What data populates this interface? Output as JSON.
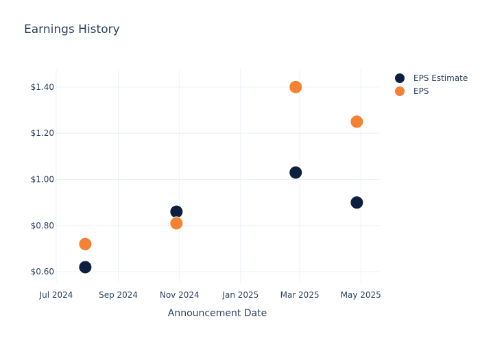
{
  "chart_data": {
    "type": "scatter",
    "title": "Earnings History",
    "xlabel": "Announcement Date",
    "ylabel": "",
    "x_axis": {
      "type": "date",
      "range": [
        "2024-07-01",
        "2025-05-20"
      ],
      "tick_labels": [
        {
          "date": "2024-07-01",
          "label": "Jul 2024"
        },
        {
          "date": "2024-09-01",
          "label": "Sep 2024"
        },
        {
          "date": "2024-11-01",
          "label": "Nov 2024"
        },
        {
          "date": "2025-01-01",
          "label": "Jan 2025"
        },
        {
          "date": "2025-03-01",
          "label": "Mar 2025"
        },
        {
          "date": "2025-05-01",
          "label": "May 2025"
        }
      ]
    },
    "y_axis": {
      "range": [
        0.55,
        1.48
      ],
      "tick_labels": [
        {
          "value": 0.6,
          "label": "$0.60"
        },
        {
          "value": 0.8,
          "label": "$0.80"
        },
        {
          "value": 1.0,
          "label": "$1.00"
        },
        {
          "value": 1.2,
          "label": "$1.20"
        },
        {
          "value": 1.4,
          "label": "$1.40"
        }
      ]
    },
    "grid": true,
    "legend_position": "top-right",
    "series": [
      {
        "name": "EPS Estimate",
        "color": "#0d1f3e",
        "points": [
          {
            "x": "2024-07-30",
            "y": 0.62
          },
          {
            "x": "2024-10-29",
            "y": 0.86
          },
          {
            "x": "2025-02-25",
            "y": 1.03
          },
          {
            "x": "2025-04-27",
            "y": 0.9
          }
        ]
      },
      {
        "name": "EPS",
        "color": "#f58232",
        "points": [
          {
            "x": "2024-07-30",
            "y": 0.72
          },
          {
            "x": "2024-10-29",
            "y": 0.81
          },
          {
            "x": "2025-02-25",
            "y": 1.4
          },
          {
            "x": "2025-04-27",
            "y": 1.25
          }
        ]
      }
    ]
  }
}
